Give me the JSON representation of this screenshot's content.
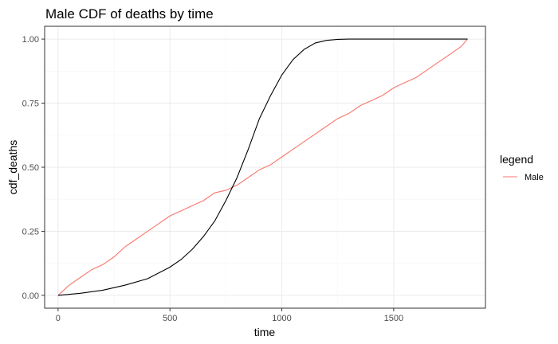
{
  "chart_data": {
    "type": "line",
    "title": "Male CDF of deaths by time",
    "xlabel": "time",
    "ylabel": "cdf_deaths",
    "xlim": [
      -60,
      1910
    ],
    "ylim": [
      -0.05,
      1.05
    ],
    "x_ticks": [
      {
        "value": 0,
        "label": "0"
      },
      {
        "value": 500,
        "label": "500"
      },
      {
        "value": 1000,
        "label": "1000"
      },
      {
        "value": 1500,
        "label": "1500"
      }
    ],
    "y_ticks": [
      {
        "value": 0.0,
        "label": "0.00"
      },
      {
        "value": 0.25,
        "label": "0.25"
      },
      {
        "value": 0.5,
        "label": "0.50"
      },
      {
        "value": 0.75,
        "label": "0.75"
      },
      {
        "value": 1.0,
        "label": "1.00"
      }
    ],
    "grid": true,
    "legend": {
      "title": "legend",
      "position": "right",
      "entries": [
        {
          "label": "Male",
          "color": "#F8766D"
        }
      ]
    },
    "series": [
      {
        "name": "Male",
        "color": "#F8766D",
        "x": [
          0,
          50,
          100,
          150,
          200,
          250,
          300,
          350,
          400,
          450,
          500,
          550,
          600,
          650,
          700,
          750,
          800,
          850,
          900,
          950,
          1000,
          1050,
          1100,
          1150,
          1200,
          1250,
          1300,
          1350,
          1400,
          1450,
          1500,
          1550,
          1600,
          1650,
          1700,
          1750,
          1800,
          1830
        ],
        "y": [
          0.0,
          0.04,
          0.07,
          0.1,
          0.12,
          0.15,
          0.19,
          0.22,
          0.25,
          0.28,
          0.31,
          0.33,
          0.35,
          0.37,
          0.4,
          0.41,
          0.43,
          0.46,
          0.49,
          0.51,
          0.54,
          0.57,
          0.6,
          0.63,
          0.66,
          0.69,
          0.71,
          0.74,
          0.76,
          0.78,
          0.81,
          0.83,
          0.85,
          0.88,
          0.91,
          0.94,
          0.97,
          1.0
        ]
      },
      {
        "color": "#000000",
        "x": [
          0,
          100,
          200,
          300,
          400,
          500,
          550,
          600,
          650,
          700,
          750,
          800,
          850,
          900,
          950,
          1000,
          1050,
          1100,
          1150,
          1200,
          1250,
          1300,
          1400,
          1500,
          1600,
          1700,
          1830
        ],
        "y": [
          0.0,
          0.008,
          0.02,
          0.04,
          0.065,
          0.11,
          0.14,
          0.18,
          0.23,
          0.29,
          0.37,
          0.46,
          0.57,
          0.69,
          0.78,
          0.86,
          0.92,
          0.96,
          0.985,
          0.995,
          0.999,
          1.0,
          1.0,
          1.0,
          1.0,
          1.0,
          1.0
        ]
      }
    ]
  }
}
